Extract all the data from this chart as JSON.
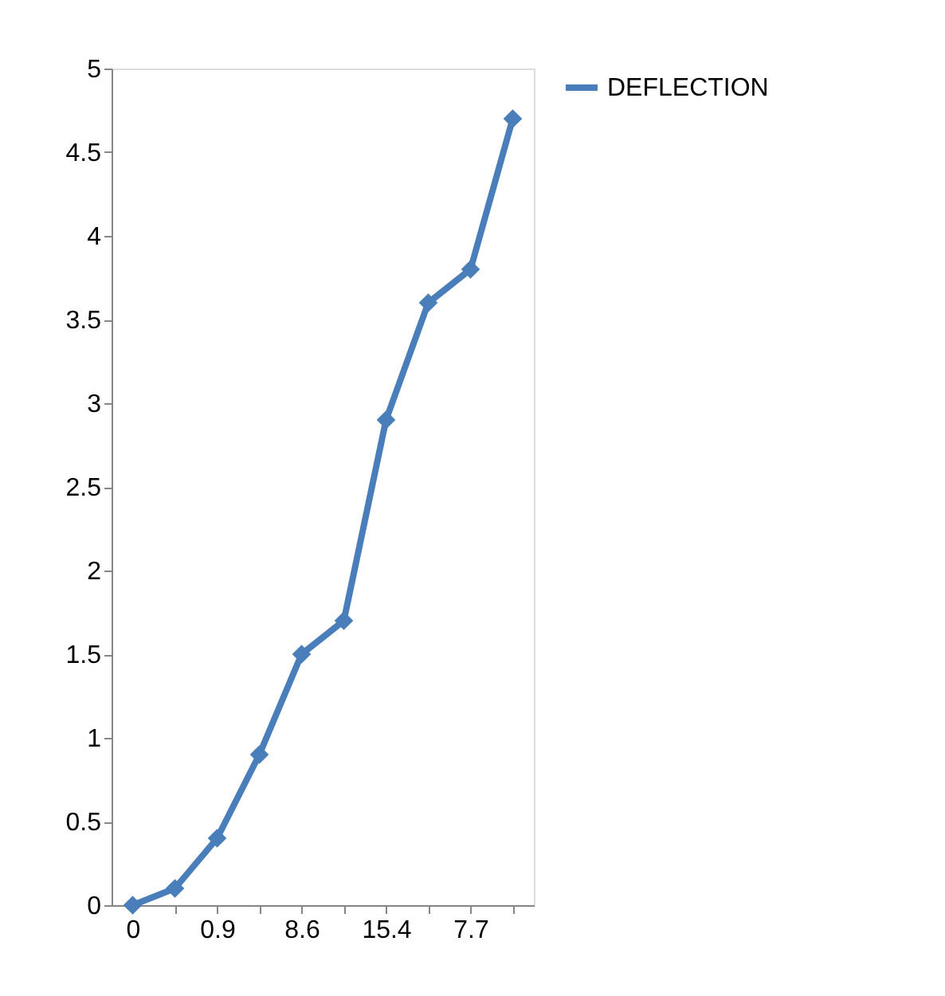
{
  "chart_data": {
    "type": "line",
    "categories": [
      "0",
      null,
      "0.9",
      null,
      "8.6",
      null,
      "15.4",
      null,
      "7.7",
      null
    ],
    "series": [
      {
        "name": "DEFLECTION",
        "color": "#4a7ebb",
        "values": [
          0,
          0.1,
          0.4,
          0.9,
          1.5,
          1.7,
          2.9,
          3.6,
          3.8,
          4.7
        ]
      }
    ],
    "ylim": [
      0,
      5
    ],
    "yticks": [
      0,
      0.5,
      1,
      1.5,
      2,
      2.5,
      3,
      3.5,
      4,
      4.5,
      5
    ],
    "marker": "diamond",
    "line_style": "solid",
    "grid": false,
    "legend": "right"
  }
}
